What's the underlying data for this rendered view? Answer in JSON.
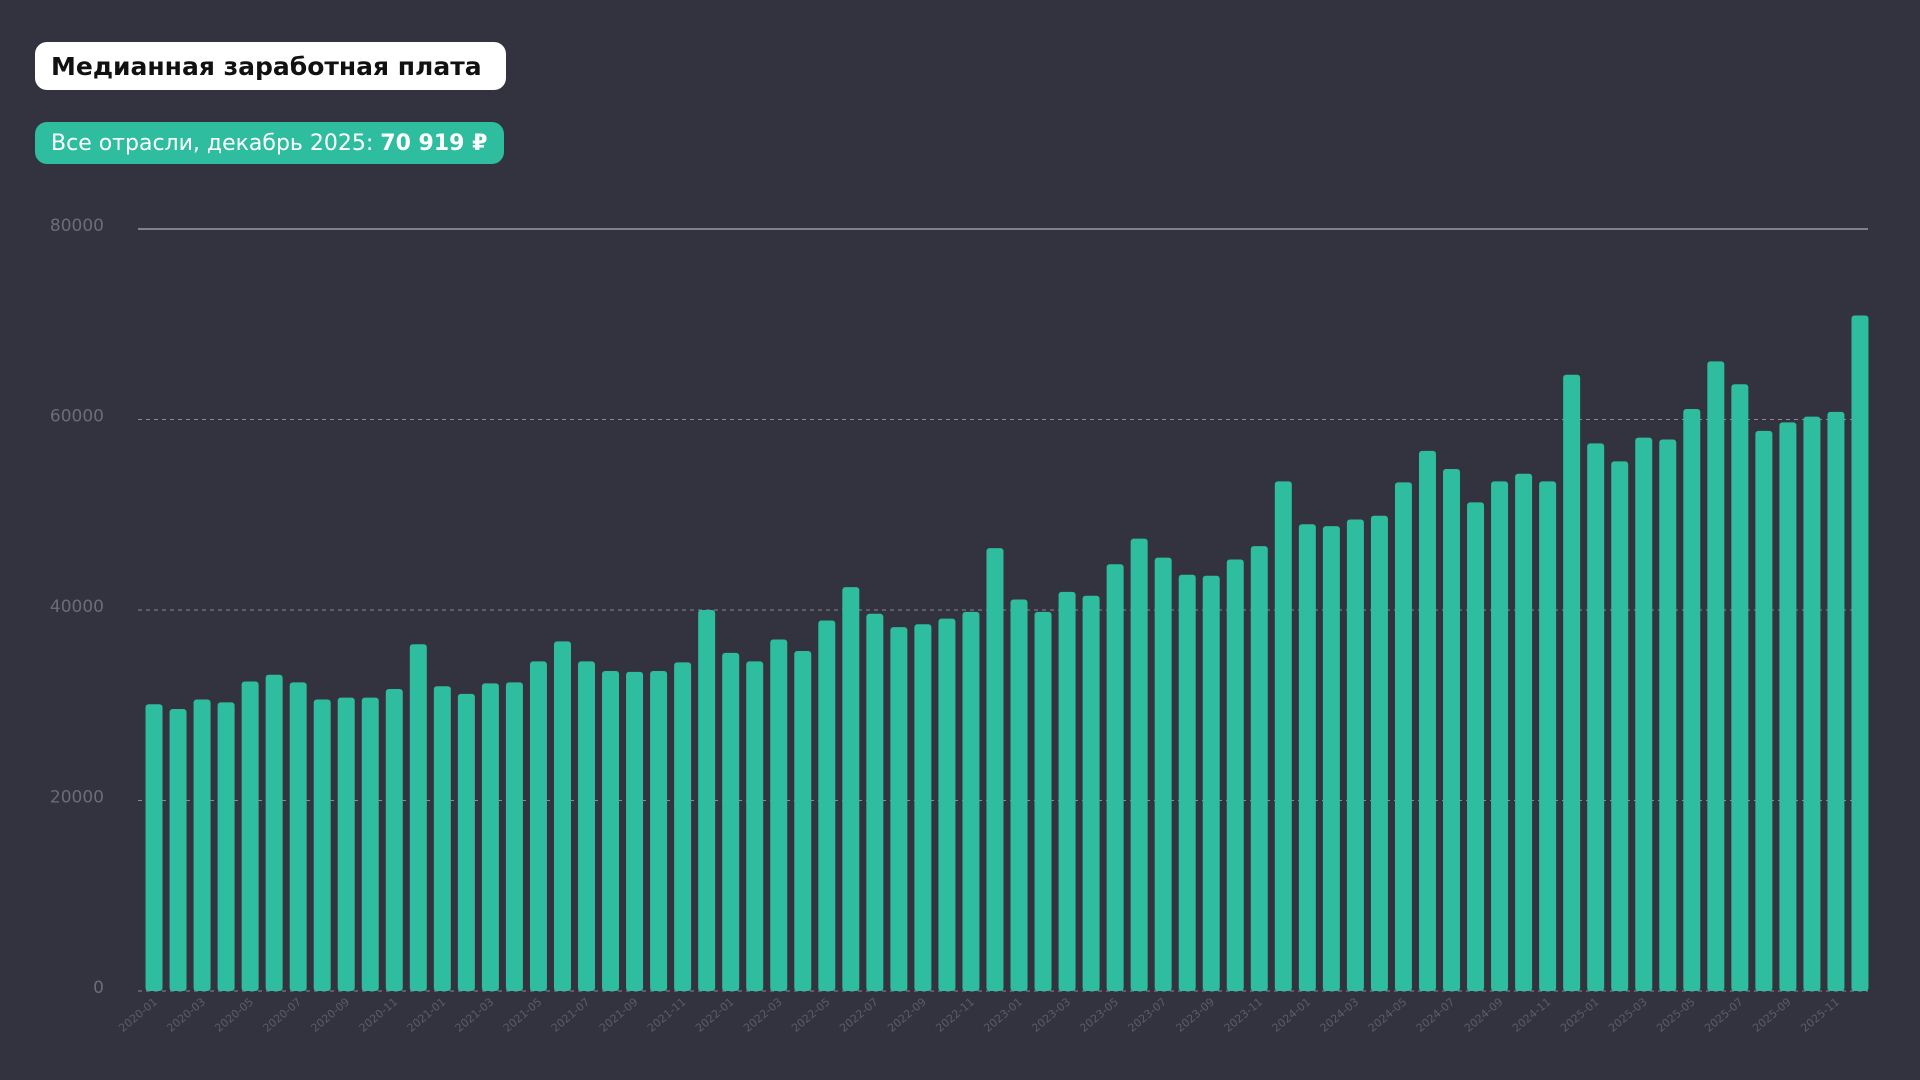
{
  "header": {
    "title": "Медианная заработная плата",
    "summary_prefix": "Все отрасли, декабрь 2025: ",
    "summary_value": "70 919 ₽"
  },
  "colors": {
    "background": "#33333f",
    "bar": "#2ebd9e",
    "accent": "#2ebd9e"
  },
  "chart_data": {
    "type": "bar",
    "title": "Медианная заработная плата",
    "xlabel": "",
    "ylabel": "",
    "ylim": [
      0,
      80000
    ],
    "yticks": [
      0,
      20000,
      40000,
      60000,
      80000
    ],
    "grid": true,
    "categories": [
      "2020-01",
      "2020-02",
      "2020-03",
      "2020-04",
      "2020-05",
      "2020-06",
      "2020-07",
      "2020-08",
      "2020-09",
      "2020-10",
      "2020-11",
      "2020-12",
      "2021-01",
      "2021-02",
      "2021-03",
      "2021-04",
      "2021-05",
      "2021-06",
      "2021-07",
      "2021-08",
      "2021-09",
      "2021-10",
      "2021-11",
      "2021-12",
      "2022-01",
      "2022-02",
      "2022-03",
      "2022-04",
      "2022-05",
      "2022-06",
      "2022-07",
      "2022-08",
      "2022-09",
      "2022-10",
      "2022-11",
      "2022-12",
      "2023-01",
      "2023-02",
      "2023-03",
      "2023-04",
      "2023-05",
      "2023-06",
      "2023-07",
      "2023-08",
      "2023-09",
      "2023-10",
      "2023-11",
      "2023-12",
      "2024-01",
      "2024-02",
      "2024-03",
      "2024-04",
      "2024-05",
      "2024-06",
      "2024-07",
      "2024-08",
      "2024-09",
      "2024-10",
      "2024-11",
      "2024-12",
      "2025-01",
      "2025-02",
      "2025-03",
      "2025-04",
      "2025-05",
      "2025-06",
      "2025-07",
      "2025-08",
      "2025-09",
      "2025-10",
      "2025-11",
      "2025-12"
    ],
    "tick_labels": [
      "2020-01",
      "2020-03",
      "2020-05",
      "2020-07",
      "2020-09",
      "2020-11",
      "2021-01",
      "2021-03",
      "2021-05",
      "2021-07",
      "2021-09",
      "2021-11",
      "2022-01",
      "2022-03",
      "2022-05",
      "2022-07",
      "2022-09",
      "2022-11",
      "2023-01",
      "2023-03",
      "2023-05",
      "2023-07",
      "2023-09",
      "2023-11",
      "2024-01",
      "2024-03",
      "2024-05",
      "2024-07",
      "2024-09",
      "2024-11",
      "2025-01",
      "2025-03",
      "2025-05",
      "2025-07",
      "2025-09",
      "2025-11"
    ],
    "values": [
      30100,
      29600,
      30600,
      30300,
      32500,
      33200,
      32400,
      30600,
      30800,
      30800,
      31700,
      36400,
      32000,
      31200,
      32300,
      32400,
      34600,
      36700,
      34600,
      33600,
      33500,
      33600,
      34500,
      40000,
      35500,
      34600,
      36900,
      35700,
      38900,
      42400,
      39600,
      38200,
      38500,
      39100,
      39800,
      46500,
      41100,
      39800,
      41900,
      41500,
      44800,
      47500,
      45500,
      43700,
      43600,
      45300,
      46700,
      53500,
      49000,
      48800,
      49500,
      49900,
      53400,
      56700,
      54800,
      51300,
      53500,
      54300,
      53500,
      64700,
      57500,
      55600,
      58100,
      57900,
      61100,
      66100,
      63700,
      58800,
      59700,
      60300,
      60800,
      70919
    ]
  }
}
